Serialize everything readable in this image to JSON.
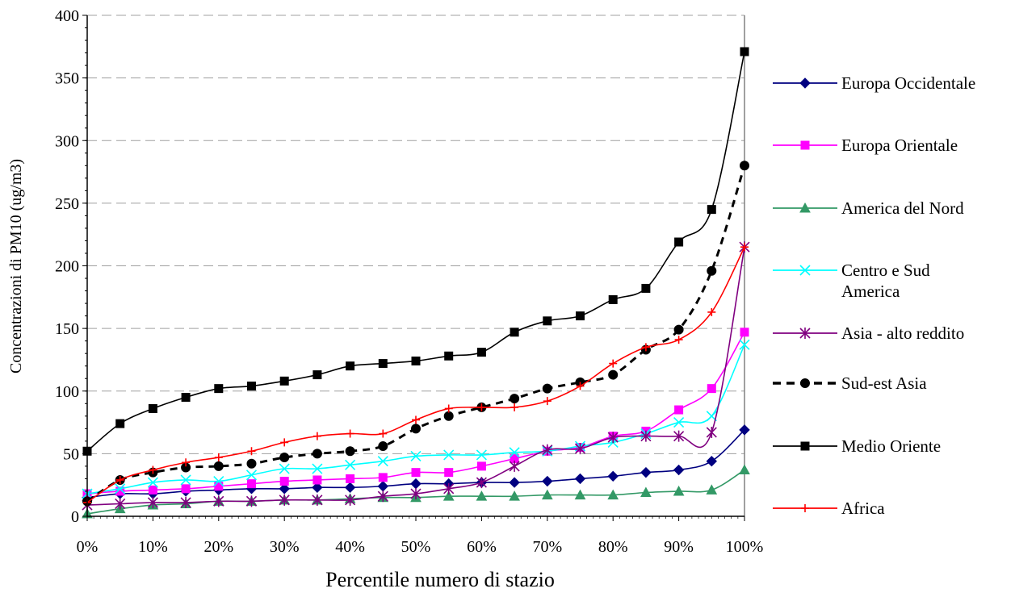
{
  "chart_data": {
    "type": "line",
    "title": "",
    "xlabel": "Percentile numero di stazio",
    "ylabel": "Concentrazioni di PM10 (ug/m3)",
    "xlim": [
      0,
      100
    ],
    "ylim": [
      0,
      400
    ],
    "grid": "horizontal dashed",
    "legend_position": "right",
    "x": [
      0,
      5,
      10,
      15,
      20,
      25,
      30,
      35,
      40,
      45,
      50,
      55,
      60,
      65,
      70,
      75,
      80,
      85,
      90,
      95,
      100
    ],
    "x_tick_labels": [
      "0%",
      "10%",
      "20%",
      "30%",
      "40%",
      "50%",
      "60%",
      "70%",
      "80%",
      "90%",
      "100%"
    ],
    "y_tick_labels": [
      "0",
      "50",
      "100",
      "150",
      "200",
      "250",
      "300",
      "350",
      "400"
    ],
    "series": [
      {
        "name": "Europa Occidentale",
        "color": "#000080",
        "marker": "diamond",
        "dash": "solid",
        "values": [
          15,
          18,
          18,
          20,
          21,
          22,
          22,
          23,
          23,
          24,
          26,
          26,
          27,
          27,
          28,
          30,
          32,
          35,
          37,
          44,
          69
        ]
      },
      {
        "name": "Europa Orientale",
        "color": "#ff00ff",
        "marker": "square",
        "dash": "solid",
        "values": [
          18,
          20,
          21,
          22,
          24,
          26,
          28,
          29,
          30,
          31,
          35,
          35,
          40,
          46,
          52,
          55,
          64,
          68,
          85,
          102,
          147
        ]
      },
      {
        "name": "America del Nord",
        "color": "#339966",
        "marker": "triangle",
        "dash": "solid",
        "values": [
          2,
          6,
          9,
          10,
          12,
          12,
          13,
          13,
          14,
          15,
          15,
          16,
          16,
          16,
          17,
          17,
          17,
          19,
          20,
          21,
          37
        ]
      },
      {
        "name": "Centro e Sud America",
        "label_lines": [
          "Centro e Sud",
          "America"
        ],
        "color": "#00ffff",
        "marker": "x",
        "dash": "solid",
        "values": [
          18,
          22,
          27,
          29,
          28,
          33,
          38,
          38,
          41,
          44,
          48,
          49,
          49,
          51,
          52,
          56,
          59,
          66,
          75,
          80,
          137
        ]
      },
      {
        "name": "Asia - alto reddito",
        "color": "#800080",
        "marker": "star",
        "dash": "solid",
        "values": [
          9,
          10,
          11,
          11,
          12,
          12,
          13,
          13,
          13,
          16,
          18,
          22,
          27,
          40,
          53,
          54,
          63,
          64,
          64,
          67,
          215
        ]
      },
      {
        "name": "Sud-est Asia",
        "color": "#000000",
        "marker": "circle",
        "dash": "dashed",
        "values": [
          12,
          29,
          35,
          39,
          40,
          42,
          47,
          50,
          52,
          56,
          70,
          80,
          87,
          94,
          102,
          107,
          113,
          133,
          149,
          196,
          280
        ]
      },
      {
        "name": "Medio Oriente",
        "color": "#000000",
        "marker": "square",
        "dash": "solid",
        "values": [
          52,
          74,
          86,
          95,
          102,
          104,
          108,
          113,
          120,
          122,
          124,
          128,
          131,
          147,
          156,
          160,
          173,
          182,
          219,
          245,
          371
        ]
      },
      {
        "name": "Africa",
        "color": "#ff0000",
        "marker": "plus",
        "dash": "solid",
        "values": [
          11,
          29,
          37,
          43,
          47,
          52,
          59,
          64,
          66,
          66,
          77,
          86,
          87,
          87,
          92,
          104,
          122,
          135,
          141,
          163,
          215
        ]
      }
    ]
  }
}
